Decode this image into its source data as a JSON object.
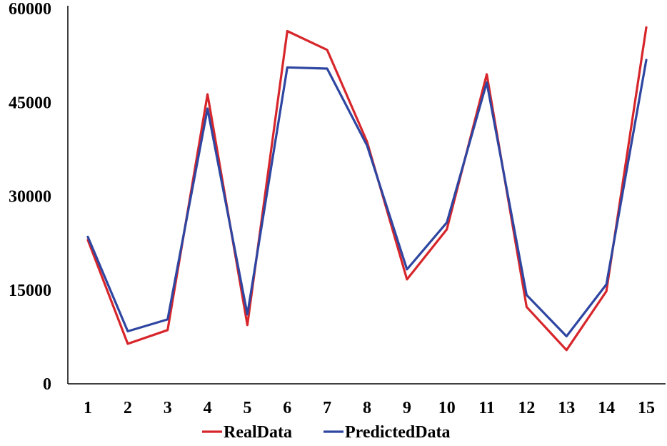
{
  "chart_data": {
    "type": "line",
    "categories": [
      "1",
      "2",
      "3",
      "4",
      "5",
      "6",
      "7",
      "8",
      "9",
      "10",
      "11",
      "12",
      "13",
      "14",
      "15"
    ],
    "series": [
      {
        "name": "RealData",
        "color": "#d7262b",
        "values": [
          23000,
          6400,
          8600,
          46300,
          9400,
          56400,
          53400,
          38700,
          16700,
          24700,
          49500,
          12300,
          5400,
          14800,
          57000
        ]
      },
      {
        "name": "PredictedData",
        "color": "#2e46a1",
        "values": [
          23500,
          8400,
          10300,
          44000,
          11100,
          50600,
          50400,
          38100,
          18300,
          25800,
          48200,
          14200,
          7600,
          15900,
          51800
        ]
      }
    ],
    "yticks": [
      "0",
      "15000",
      "30000",
      "45000",
      "60000"
    ],
    "ylim": [
      0,
      60000
    ],
    "grid": false,
    "legend": "bottom",
    "xlabel": "",
    "ylabel": "",
    "title": ""
  }
}
